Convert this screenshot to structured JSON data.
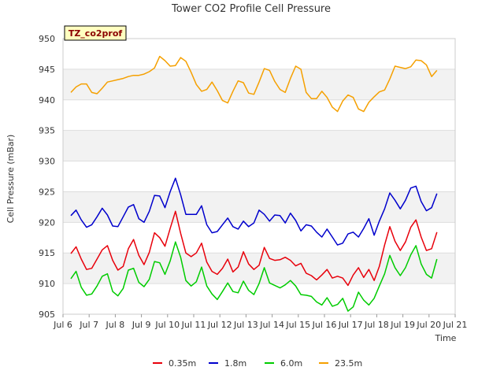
{
  "chart_data": {
    "type": "line",
    "title": "Tower CO2 Profile Cell Pressure",
    "xlabel": "Time",
    "ylabel": "Cell Pressure (mBar)",
    "site_badge": "TZ_co2prof",
    "xlim": [
      6.0,
      21.0
    ],
    "ylim": [
      905,
      950
    ],
    "x_ticks": [
      {
        "value": 6,
        "label": "Jul 6"
      },
      {
        "value": 7,
        "label": "Jul 7"
      },
      {
        "value": 8,
        "label": "Jul 8"
      },
      {
        "value": 9,
        "label": "Jul 9"
      },
      {
        "value": 10,
        "label": "Jul 10"
      },
      {
        "value": 11,
        "label": "Jul 11"
      },
      {
        "value": 12,
        "label": "Jul 12"
      },
      {
        "value": 13,
        "label": "Jul 13"
      },
      {
        "value": 14,
        "label": "Jul 14"
      },
      {
        "value": 15,
        "label": "Jul 15"
      },
      {
        "value": 16,
        "label": "Jul 16"
      },
      {
        "value": 17,
        "label": "Jul 17"
      },
      {
        "value": 18,
        "label": "Jul 18"
      },
      {
        "value": 19,
        "label": "Jul 19"
      },
      {
        "value": 20,
        "label": "Jul 20"
      },
      {
        "value": 21,
        "label": "Jul 21"
      }
    ],
    "y_ticks": [
      905,
      910,
      915,
      920,
      925,
      930,
      935,
      940,
      945,
      950
    ],
    "grid": true,
    "legend_position": "bottom",
    "series": [
      {
        "name": "0.35m",
        "color": "#e8000b",
        "points": [
          [
            6.3,
            914.9
          ],
          [
            6.5,
            916.0
          ],
          [
            6.7,
            914.0
          ],
          [
            6.9,
            912.3
          ],
          [
            7.1,
            912.5
          ],
          [
            7.3,
            914.0
          ],
          [
            7.5,
            915.5
          ],
          [
            7.7,
            916.2
          ],
          [
            7.9,
            913.8
          ],
          [
            8.1,
            912.2
          ],
          [
            8.3,
            912.8
          ],
          [
            8.5,
            915.7
          ],
          [
            8.7,
            917.2
          ],
          [
            8.9,
            914.6
          ],
          [
            9.1,
            913.1
          ],
          [
            9.3,
            915.1
          ],
          [
            9.5,
            918.3
          ],
          [
            9.7,
            917.5
          ],
          [
            9.9,
            916.1
          ],
          [
            10.1,
            919.0
          ],
          [
            10.3,
            921.8
          ],
          [
            10.5,
            918.2
          ],
          [
            10.7,
            915.0
          ],
          [
            10.9,
            914.4
          ],
          [
            11.1,
            915.0
          ],
          [
            11.3,
            916.6
          ],
          [
            11.5,
            913.5
          ],
          [
            11.7,
            912.0
          ],
          [
            11.9,
            911.5
          ],
          [
            12.1,
            912.5
          ],
          [
            12.3,
            914.0
          ],
          [
            12.5,
            911.9
          ],
          [
            12.7,
            912.7
          ],
          [
            12.9,
            915.2
          ],
          [
            13.1,
            913.2
          ],
          [
            13.3,
            912.3
          ],
          [
            13.5,
            913.0
          ],
          [
            13.7,
            915.9
          ],
          [
            13.9,
            914.1
          ],
          [
            14.1,
            913.8
          ],
          [
            14.3,
            913.9
          ],
          [
            14.5,
            914.3
          ],
          [
            14.7,
            913.8
          ],
          [
            14.9,
            912.9
          ],
          [
            15.1,
            913.3
          ],
          [
            15.3,
            911.7
          ],
          [
            15.5,
            911.3
          ],
          [
            15.7,
            910.6
          ],
          [
            15.9,
            911.4
          ],
          [
            16.1,
            912.3
          ],
          [
            16.3,
            910.9
          ],
          [
            16.5,
            911.2
          ],
          [
            16.7,
            910.9
          ],
          [
            16.9,
            909.7
          ],
          [
            17.1,
            911.4
          ],
          [
            17.3,
            912.6
          ],
          [
            17.5,
            911.0
          ],
          [
            17.7,
            912.3
          ],
          [
            17.9,
            910.5
          ],
          [
            18.1,
            912.8
          ],
          [
            18.3,
            916.3
          ],
          [
            18.5,
            919.3
          ],
          [
            18.7,
            916.9
          ],
          [
            18.9,
            915.4
          ],
          [
            19.1,
            916.8
          ],
          [
            19.3,
            919.2
          ],
          [
            19.5,
            920.4
          ],
          [
            19.7,
            917.6
          ],
          [
            19.9,
            915.4
          ],
          [
            20.1,
            915.7
          ],
          [
            20.3,
            918.4
          ]
        ]
      },
      {
        "name": "1.8m",
        "color": "#0000cc",
        "points": [
          [
            6.3,
            921.1
          ],
          [
            6.5,
            922.0
          ],
          [
            6.7,
            920.4
          ],
          [
            6.9,
            919.2
          ],
          [
            7.1,
            919.6
          ],
          [
            7.3,
            920.9
          ],
          [
            7.5,
            922.3
          ],
          [
            7.7,
            921.2
          ],
          [
            7.9,
            919.4
          ],
          [
            8.1,
            919.3
          ],
          [
            8.3,
            920.9
          ],
          [
            8.5,
            922.5
          ],
          [
            8.7,
            922.9
          ],
          [
            8.9,
            920.6
          ],
          [
            9.1,
            920.0
          ],
          [
            9.3,
            921.8
          ],
          [
            9.5,
            924.4
          ],
          [
            9.7,
            924.3
          ],
          [
            9.9,
            922.4
          ],
          [
            10.1,
            925.0
          ],
          [
            10.3,
            927.2
          ],
          [
            10.5,
            924.5
          ],
          [
            10.7,
            921.3
          ],
          [
            10.9,
            921.3
          ],
          [
            11.1,
            921.3
          ],
          [
            11.3,
            922.7
          ],
          [
            11.5,
            919.6
          ],
          [
            11.7,
            918.3
          ],
          [
            11.9,
            918.5
          ],
          [
            12.1,
            919.6
          ],
          [
            12.3,
            920.7
          ],
          [
            12.5,
            919.3
          ],
          [
            12.7,
            918.9
          ],
          [
            12.9,
            920.2
          ],
          [
            13.1,
            919.3
          ],
          [
            13.3,
            919.9
          ],
          [
            13.5,
            922.0
          ],
          [
            13.7,
            921.3
          ],
          [
            13.9,
            920.2
          ],
          [
            14.1,
            921.2
          ],
          [
            14.3,
            921.1
          ],
          [
            14.5,
            919.9
          ],
          [
            14.7,
            921.5
          ],
          [
            14.9,
            920.3
          ],
          [
            15.1,
            918.6
          ],
          [
            15.3,
            919.6
          ],
          [
            15.5,
            919.4
          ],
          [
            15.7,
            918.4
          ],
          [
            15.9,
            917.6
          ],
          [
            16.1,
            918.9
          ],
          [
            16.3,
            917.6
          ],
          [
            16.5,
            916.3
          ],
          [
            16.7,
            916.6
          ],
          [
            16.9,
            918.1
          ],
          [
            17.1,
            918.4
          ],
          [
            17.3,
            917.6
          ],
          [
            17.5,
            919.0
          ],
          [
            17.7,
            920.6
          ],
          [
            17.9,
            917.9
          ],
          [
            18.1,
            920.2
          ],
          [
            18.3,
            922.2
          ],
          [
            18.5,
            924.8
          ],
          [
            18.7,
            923.6
          ],
          [
            18.9,
            922.2
          ],
          [
            19.1,
            923.6
          ],
          [
            19.3,
            925.6
          ],
          [
            19.5,
            925.9
          ],
          [
            19.7,
            923.4
          ],
          [
            19.9,
            921.9
          ],
          [
            20.1,
            922.4
          ],
          [
            20.3,
            924.7
          ]
        ]
      },
      {
        "name": "6.0m",
        "color": "#00cc00",
        "points": [
          [
            6.3,
            910.8
          ],
          [
            6.5,
            912.0
          ],
          [
            6.7,
            909.4
          ],
          [
            6.9,
            908.1
          ],
          [
            7.1,
            908.3
          ],
          [
            7.3,
            909.6
          ],
          [
            7.5,
            911.2
          ],
          [
            7.7,
            911.6
          ],
          [
            7.9,
            908.7
          ],
          [
            8.1,
            908.0
          ],
          [
            8.3,
            909.2
          ],
          [
            8.5,
            912.2
          ],
          [
            8.7,
            912.5
          ],
          [
            8.9,
            910.2
          ],
          [
            9.1,
            909.5
          ],
          [
            9.3,
            910.7
          ],
          [
            9.5,
            913.6
          ],
          [
            9.7,
            913.4
          ],
          [
            9.9,
            911.5
          ],
          [
            10.1,
            913.7
          ],
          [
            10.3,
            916.8
          ],
          [
            10.5,
            914.3
          ],
          [
            10.7,
            910.5
          ],
          [
            10.9,
            909.6
          ],
          [
            11.1,
            910.3
          ],
          [
            11.3,
            912.7
          ],
          [
            11.5,
            909.6
          ],
          [
            11.7,
            908.3
          ],
          [
            11.9,
            907.4
          ],
          [
            12.1,
            908.7
          ],
          [
            12.3,
            910.1
          ],
          [
            12.5,
            908.7
          ],
          [
            12.7,
            908.5
          ],
          [
            12.9,
            910.4
          ],
          [
            13.1,
            908.9
          ],
          [
            13.3,
            908.2
          ],
          [
            13.5,
            910.0
          ],
          [
            13.7,
            912.6
          ],
          [
            13.9,
            910.1
          ],
          [
            14.1,
            909.7
          ],
          [
            14.3,
            909.3
          ],
          [
            14.5,
            909.8
          ],
          [
            14.7,
            910.5
          ],
          [
            14.9,
            909.6
          ],
          [
            15.1,
            908.2
          ],
          [
            15.3,
            908.1
          ],
          [
            15.5,
            907.9
          ],
          [
            15.7,
            907.0
          ],
          [
            15.9,
            906.5
          ],
          [
            16.1,
            907.7
          ],
          [
            16.3,
            906.3
          ],
          [
            16.5,
            906.6
          ],
          [
            16.7,
            907.6
          ],
          [
            16.9,
            905.5
          ],
          [
            17.1,
            906.2
          ],
          [
            17.3,
            908.6
          ],
          [
            17.5,
            907.3
          ],
          [
            17.7,
            906.5
          ],
          [
            17.9,
            907.6
          ],
          [
            18.1,
            909.6
          ],
          [
            18.3,
            911.6
          ],
          [
            18.5,
            914.6
          ],
          [
            18.7,
            912.6
          ],
          [
            18.9,
            911.3
          ],
          [
            19.1,
            912.6
          ],
          [
            19.3,
            914.7
          ],
          [
            19.5,
            916.2
          ],
          [
            19.7,
            913.2
          ],
          [
            19.9,
            911.5
          ],
          [
            20.1,
            910.9
          ],
          [
            20.3,
            914.0
          ]
        ]
      },
      {
        "name": "23.5m",
        "color": "#f5a000",
        "points": [
          [
            6.3,
            941.2
          ],
          [
            6.5,
            942.1
          ],
          [
            6.7,
            942.6
          ],
          [
            6.9,
            942.6
          ],
          [
            7.1,
            941.2
          ],
          [
            7.3,
            941.0
          ],
          [
            7.5,
            941.9
          ],
          [
            7.7,
            942.9
          ],
          [
            7.9,
            943.1
          ],
          [
            8.1,
            943.3
          ],
          [
            8.3,
            943.5
          ],
          [
            8.5,
            943.8
          ],
          [
            8.7,
            944.0
          ],
          [
            8.9,
            944.0
          ],
          [
            9.1,
            944.2
          ],
          [
            9.3,
            944.6
          ],
          [
            9.5,
            945.2
          ],
          [
            9.7,
            947.1
          ],
          [
            9.9,
            946.4
          ],
          [
            10.1,
            945.5
          ],
          [
            10.3,
            945.6
          ],
          [
            10.5,
            946.9
          ],
          [
            10.7,
            946.3
          ],
          [
            10.9,
            944.5
          ],
          [
            11.1,
            942.5
          ],
          [
            11.3,
            941.4
          ],
          [
            11.5,
            941.7
          ],
          [
            11.7,
            942.9
          ],
          [
            11.9,
            941.5
          ],
          [
            12.1,
            939.9
          ],
          [
            12.3,
            939.5
          ],
          [
            12.5,
            941.4
          ],
          [
            12.7,
            943.1
          ],
          [
            12.9,
            942.8
          ],
          [
            13.1,
            941.1
          ],
          [
            13.3,
            940.9
          ],
          [
            13.5,
            942.9
          ],
          [
            13.7,
            945.1
          ],
          [
            13.9,
            944.8
          ],
          [
            14.1,
            943.0
          ],
          [
            14.3,
            941.7
          ],
          [
            14.5,
            941.2
          ],
          [
            14.7,
            943.5
          ],
          [
            14.9,
            945.5
          ],
          [
            15.1,
            945.0
          ],
          [
            15.3,
            941.2
          ],
          [
            15.5,
            940.2
          ],
          [
            15.7,
            940.2
          ],
          [
            15.9,
            941.4
          ],
          [
            16.1,
            940.4
          ],
          [
            16.3,
            938.8
          ],
          [
            16.5,
            938.1
          ],
          [
            16.7,
            939.8
          ],
          [
            16.9,
            940.8
          ],
          [
            17.1,
            940.4
          ],
          [
            17.3,
            938.5
          ],
          [
            17.5,
            938.1
          ],
          [
            17.7,
            939.6
          ],
          [
            17.9,
            940.5
          ],
          [
            18.1,
            941.3
          ],
          [
            18.3,
            941.6
          ],
          [
            18.5,
            943.4
          ],
          [
            18.7,
            945.5
          ],
          [
            18.9,
            945.3
          ],
          [
            19.1,
            945.1
          ],
          [
            19.3,
            945.4
          ],
          [
            19.5,
            946.5
          ],
          [
            19.7,
            946.4
          ],
          [
            19.9,
            945.7
          ],
          [
            20.1,
            943.8
          ],
          [
            20.3,
            944.8
          ]
        ]
      }
    ]
  }
}
